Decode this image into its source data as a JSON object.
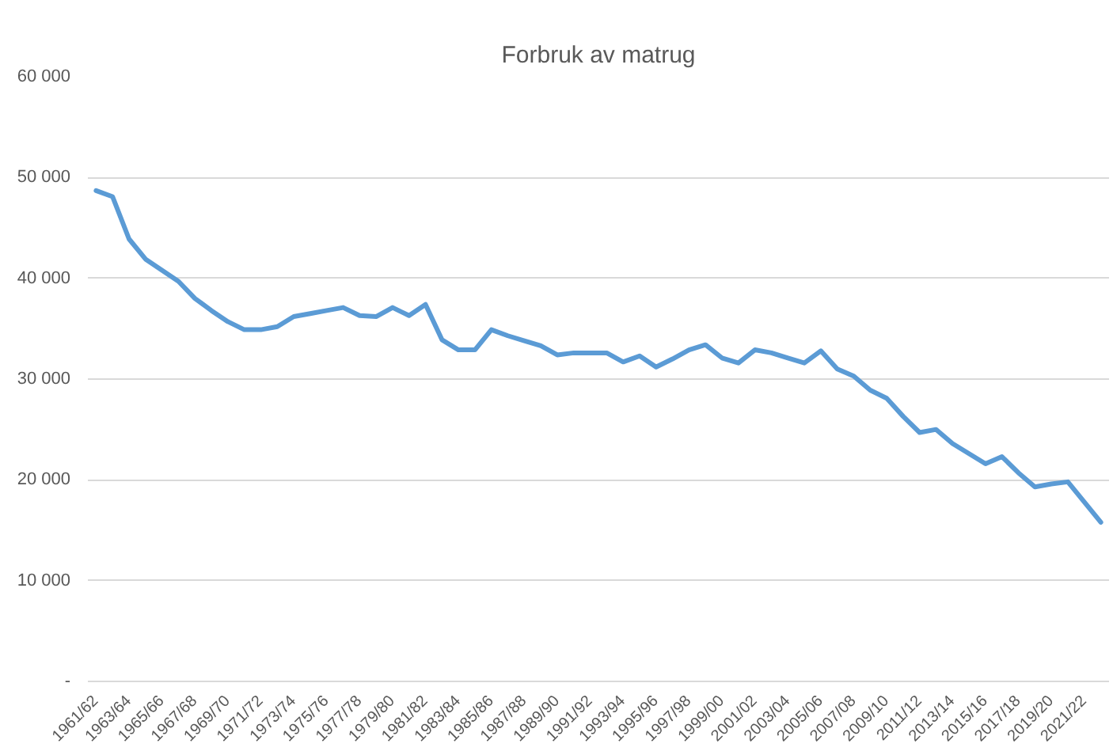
{
  "chart_data": {
    "type": "line",
    "title": "Forbruk av matrug",
    "categories": [
      "1961/62",
      null,
      "1963/64",
      null,
      "1965/66",
      null,
      "1967/68",
      null,
      "1969/70",
      null,
      "1971/72",
      null,
      "1973/74",
      null,
      "1975/76",
      null,
      "1977/78",
      null,
      "1979/80",
      null,
      "1981/82",
      null,
      "1983/84",
      null,
      "1985/86",
      null,
      "1987/88",
      null,
      "1989/90",
      null,
      "1991/92",
      null,
      "1993/94",
      null,
      "1995/96",
      null,
      "1997/98",
      null,
      "1999/00",
      null,
      "2001/02",
      null,
      "2003/04",
      null,
      "2005/06",
      null,
      "2007/08",
      null,
      "2009/10",
      null,
      "2011/12",
      null,
      "2013/14",
      null,
      "2015/16",
      null,
      "2017/18",
      null,
      "2019/20",
      null,
      "2021/22",
      null
    ],
    "series": [
      {
        "color": "#5b9bd5",
        "values": [
          48700,
          48100,
          43900,
          41900,
          40800,
          39700,
          38000,
          36800,
          35700,
          34900,
          34900,
          35200,
          36200,
          36500,
          36800,
          37100,
          36300,
          36200,
          37100,
          36300,
          37400,
          33900,
          32900,
          32900,
          34900,
          34300,
          33800,
          33300,
          32400,
          32600,
          32600,
          32600,
          31700,
          32300,
          31200,
          32000,
          32900,
          33400,
          32100,
          31600,
          32900,
          32600,
          32100,
          31600,
          32800,
          31000,
          30300,
          28900,
          28100,
          26300,
          24700,
          25000,
          23600,
          22600,
          21600,
          22300,
          20700,
          19300,
          19600,
          19800,
          17800,
          15800
        ]
      }
    ],
    "ylim": [
      0,
      60000
    ],
    "yticks": [
      {
        "value": 0,
        "label": "-"
      },
      {
        "value": 10000,
        "label": "10 000"
      },
      {
        "value": 20000,
        "label": "20 000"
      },
      {
        "value": 30000,
        "label": "30 000"
      },
      {
        "value": 40000,
        "label": "40 000"
      },
      {
        "value": 50000,
        "label": "50 000"
      },
      {
        "value": 60000,
        "label": "60 000"
      }
    ],
    "grid": "y"
  }
}
